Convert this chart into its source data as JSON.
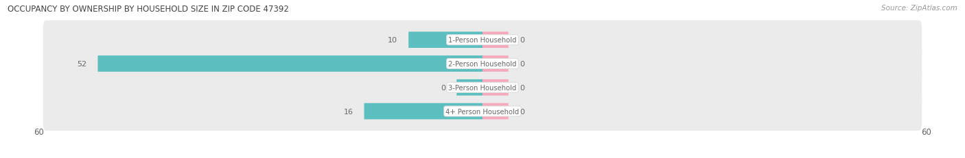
{
  "title": "OCCUPANCY BY OWNERSHIP BY HOUSEHOLD SIZE IN ZIP CODE 47392",
  "source": "Source: ZipAtlas.com",
  "categories": [
    "1-Person Household",
    "2-Person Household",
    "3-Person Household",
    "4+ Person Household"
  ],
  "owner_values": [
    10,
    52,
    0,
    16
  ],
  "renter_values": [
    0,
    0,
    0,
    0
  ],
  "owner_color": "#5bbfc0",
  "renter_color": "#f7a8bb",
  "row_bg_color": "#ebebeb",
  "xlim": 60,
  "label_color": "#666666",
  "title_color": "#444444",
  "renter_stub": 3.5,
  "bar_height": 0.68,
  "row_sep_color": "#ffffff"
}
